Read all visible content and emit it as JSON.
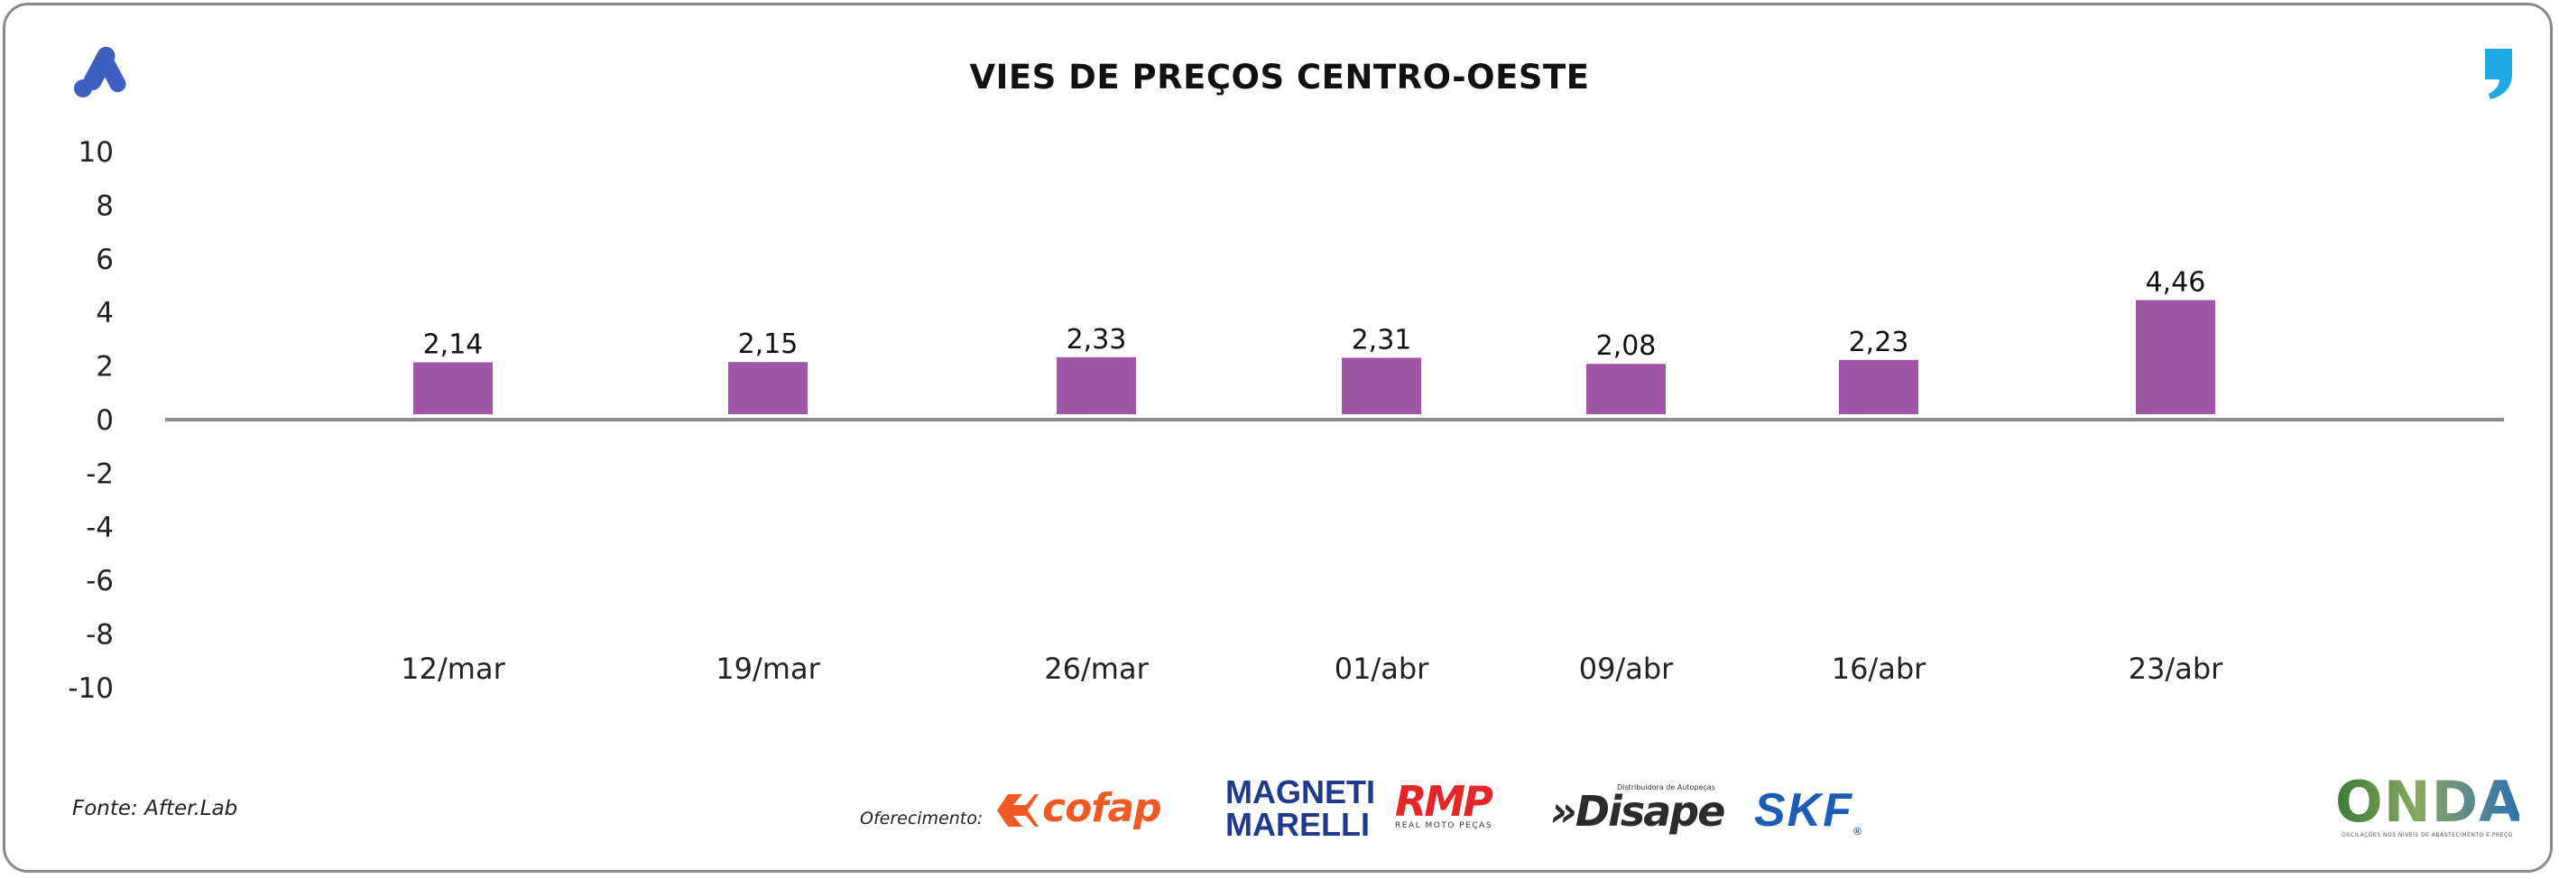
{
  "header": {
    "title": "VIES DE PREÇOS CENTRO-OESTE",
    "left_logo_icon": "stylized-a-logo-icon",
    "right_logo_icon": "comma-logo-icon"
  },
  "chart_data": {
    "type": "bar",
    "title": "VIES DE PREÇOS CENTRO-OESTE",
    "xlabel": "",
    "ylabel": "",
    "categories": [
      "12/mar",
      "19/mar",
      "26/mar",
      "01/abr",
      "09/abr",
      "16/abr",
      "23/abr"
    ],
    "values": [
      2.14,
      2.15,
      2.33,
      2.31,
      2.08,
      2.23,
      4.46
    ],
    "value_labels": [
      "2,14",
      "2,15",
      "2,33",
      "2,31",
      "2,08",
      "2,23",
      "4,46"
    ],
    "ylim": [
      -10,
      10
    ],
    "yticks": [
      "10",
      "8",
      "6",
      "4",
      "2",
      "0",
      "-2",
      "-4",
      "-6",
      "-8",
      "-10"
    ],
    "grid": false,
    "legend": "none",
    "colors": {
      "bar": "#a057a6",
      "axis": "#8c8c8c",
      "text": "#222222"
    }
  },
  "footer": {
    "source": "Fonte: After.Lab",
    "sponsor_label": "Oferecimento:",
    "sponsors": {
      "cofap": "cofap",
      "magneti_line1": "MAGNETI",
      "magneti_line2": "MARELLI",
      "rmp": "RMP",
      "rmp_sub": "REAL MOTO PEÇAS",
      "disape": "Disape",
      "disape_small": "Distribuidora de Autopeças",
      "skf": "SKF",
      "onda": "ONDA",
      "onda_sub": "OSCILAÇÕES NOS NÍVEIS DE ABASTECIMENTO E PREÇO"
    }
  }
}
